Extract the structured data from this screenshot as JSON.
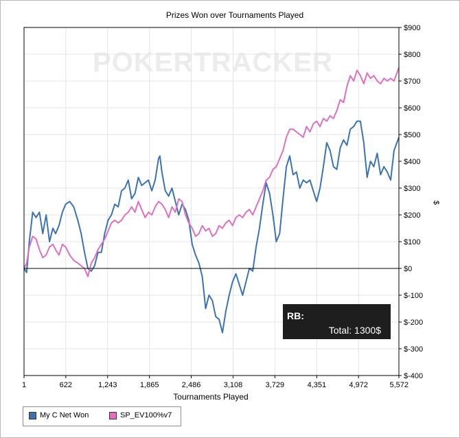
{
  "chart_data": {
    "type": "line",
    "title": "Prizes Won over Tournaments Played",
    "xlabel": "Tournaments Played",
    "ylabel": "$",
    "xlim": [
      1,
      5572
    ],
    "ylim": [
      -400,
      900
    ],
    "x_ticks": [
      1,
      622,
      1243,
      1865,
      2486,
      3108,
      3729,
      4351,
      4972,
      5572
    ],
    "x_tick_labels": [
      "1",
      "622",
      "1,243",
      "1,865",
      "2,486",
      "3,108",
      "3,729",
      "4,351",
      "4,972",
      "5,572"
    ],
    "y_ticks": [
      -400,
      -300,
      -200,
      -100,
      0,
      100,
      200,
      300,
      400,
      500,
      600,
      700,
      800,
      900
    ],
    "y_tick_labels": [
      "$-400",
      "$-300",
      "$-200",
      "$-100",
      "$0",
      "$100",
      "$200",
      "$300",
      "$400",
      "$500",
      "$600",
      "$700",
      "$800",
      "$900"
    ],
    "grid": true,
    "legend_position": "bottom-left",
    "series": [
      {
        "name": "My C Net Won",
        "color": "#3a73b5",
        "points": [
          [
            1,
            0
          ],
          [
            40,
            -15
          ],
          [
            80,
            100
          ],
          [
            130,
            210
          ],
          [
            180,
            190
          ],
          [
            230,
            210
          ],
          [
            280,
            130
          ],
          [
            330,
            200
          ],
          [
            380,
            100
          ],
          [
            430,
            150
          ],
          [
            470,
            130
          ],
          [
            520,
            160
          ],
          [
            570,
            210
          ],
          [
            620,
            240
          ],
          [
            680,
            250
          ],
          [
            740,
            230
          ],
          [
            800,
            180
          ],
          [
            850,
            130
          ],
          [
            900,
            60
          ],
          [
            950,
            0
          ],
          [
            1000,
            -10
          ],
          [
            1050,
            10
          ],
          [
            1100,
            60
          ],
          [
            1150,
            60
          ],
          [
            1200,
            130
          ],
          [
            1250,
            180
          ],
          [
            1300,
            200
          ],
          [
            1350,
            240
          ],
          [
            1400,
            230
          ],
          [
            1450,
            290
          ],
          [
            1500,
            300
          ],
          [
            1550,
            330
          ],
          [
            1600,
            260
          ],
          [
            1650,
            280
          ],
          [
            1700,
            340
          ],
          [
            1750,
            310
          ],
          [
            1800,
            320
          ],
          [
            1850,
            330
          ],
          [
            1900,
            290
          ],
          [
            1950,
            330
          ],
          [
            2000,
            410
          ],
          [
            2020,
            420
          ],
          [
            2050,
            360
          ],
          [
            2100,
            290
          ],
          [
            2150,
            270
          ],
          [
            2200,
            300
          ],
          [
            2250,
            250
          ],
          [
            2300,
            200
          ],
          [
            2350,
            240
          ],
          [
            2400,
            220
          ],
          [
            2450,
            180
          ],
          [
            2500,
            90
          ],
          [
            2550,
            50
          ],
          [
            2600,
            20
          ],
          [
            2650,
            -30
          ],
          [
            2700,
            -150
          ],
          [
            2750,
            -100
          ],
          [
            2800,
            -120
          ],
          [
            2850,
            -180
          ],
          [
            2900,
            -190
          ],
          [
            2950,
            -240
          ],
          [
            3000,
            -160
          ],
          [
            3050,
            -100
          ],
          [
            3100,
            -50
          ],
          [
            3150,
            -20
          ],
          [
            3200,
            -60
          ],
          [
            3250,
            -100
          ],
          [
            3300,
            -50
          ],
          [
            3350,
            0
          ],
          [
            3400,
            -10
          ],
          [
            3450,
            80
          ],
          [
            3500,
            150
          ],
          [
            3550,
            240
          ],
          [
            3600,
            320
          ],
          [
            3650,
            280
          ],
          [
            3700,
            200
          ],
          [
            3750,
            100
          ],
          [
            3800,
            130
          ],
          [
            3850,
            260
          ],
          [
            3900,
            380
          ],
          [
            3950,
            420
          ],
          [
            4000,
            350
          ],
          [
            4050,
            360
          ],
          [
            4100,
            300
          ],
          [
            4150,
            330
          ],
          [
            4200,
            320
          ],
          [
            4250,
            330
          ],
          [
            4300,
            290
          ],
          [
            4350,
            250
          ],
          [
            4400,
            300
          ],
          [
            4450,
            380
          ],
          [
            4500,
            470
          ],
          [
            4550,
            440
          ],
          [
            4600,
            380
          ],
          [
            4650,
            370
          ],
          [
            4700,
            450
          ],
          [
            4750,
            480
          ],
          [
            4800,
            460
          ],
          [
            4850,
            520
          ],
          [
            4900,
            530
          ],
          [
            4950,
            550
          ],
          [
            5000,
            550
          ],
          [
            5050,
            470
          ],
          [
            5100,
            340
          ],
          [
            5150,
            400
          ],
          [
            5200,
            380
          ],
          [
            5250,
            430
          ],
          [
            5300,
            350
          ],
          [
            5350,
            380
          ],
          [
            5400,
            360
          ],
          [
            5450,
            330
          ],
          [
            5500,
            440
          ],
          [
            5572,
            490
          ]
        ]
      },
      {
        "name": "SP_EV100%v7",
        "color": "#e06fbf",
        "points": [
          [
            1,
            0
          ],
          [
            40,
            20
          ],
          [
            80,
            80
          ],
          [
            130,
            120
          ],
          [
            180,
            110
          ],
          [
            230,
            70
          ],
          [
            280,
            40
          ],
          [
            330,
            50
          ],
          [
            380,
            80
          ],
          [
            430,
            90
          ],
          [
            470,
            70
          ],
          [
            520,
            50
          ],
          [
            570,
            90
          ],
          [
            620,
            80
          ],
          [
            680,
            50
          ],
          [
            740,
            30
          ],
          [
            800,
            20
          ],
          [
            850,
            10
          ],
          [
            900,
            0
          ],
          [
            950,
            -30
          ],
          [
            1000,
            20
          ],
          [
            1050,
            40
          ],
          [
            1100,
            70
          ],
          [
            1150,
            90
          ],
          [
            1200,
            110
          ],
          [
            1250,
            140
          ],
          [
            1300,
            170
          ],
          [
            1350,
            180
          ],
          [
            1400,
            170
          ],
          [
            1450,
            180
          ],
          [
            1500,
            200
          ],
          [
            1550,
            210
          ],
          [
            1600,
            230
          ],
          [
            1650,
            210
          ],
          [
            1700,
            250
          ],
          [
            1750,
            220
          ],
          [
            1800,
            190
          ],
          [
            1850,
            210
          ],
          [
            1900,
            200
          ],
          [
            1950,
            230
          ],
          [
            2000,
            250
          ],
          [
            2050,
            240
          ],
          [
            2100,
            220
          ],
          [
            2150,
            190
          ],
          [
            2200,
            230
          ],
          [
            2250,
            210
          ],
          [
            2300,
            260
          ],
          [
            2350,
            250
          ],
          [
            2400,
            200
          ],
          [
            2450,
            170
          ],
          [
            2500,
            150
          ],
          [
            2550,
            120
          ],
          [
            2600,
            130
          ],
          [
            2650,
            160
          ],
          [
            2700,
            140
          ],
          [
            2750,
            150
          ],
          [
            2800,
            120
          ],
          [
            2850,
            130
          ],
          [
            2900,
            160
          ],
          [
            2950,
            150
          ],
          [
            3000,
            170
          ],
          [
            3050,
            180
          ],
          [
            3100,
            160
          ],
          [
            3150,
            190
          ],
          [
            3200,
            200
          ],
          [
            3250,
            190
          ],
          [
            3300,
            210
          ],
          [
            3350,
            220
          ],
          [
            3400,
            200
          ],
          [
            3450,
            230
          ],
          [
            3500,
            260
          ],
          [
            3550,
            290
          ],
          [
            3600,
            330
          ],
          [
            3650,
            340
          ],
          [
            3700,
            370
          ],
          [
            3750,
            380
          ],
          [
            3800,
            410
          ],
          [
            3850,
            440
          ],
          [
            3900,
            490
          ],
          [
            3950,
            520
          ],
          [
            4000,
            520
          ],
          [
            4050,
            510
          ],
          [
            4100,
            500
          ],
          [
            4150,
            490
          ],
          [
            4200,
            530
          ],
          [
            4250,
            510
          ],
          [
            4300,
            540
          ],
          [
            4350,
            550
          ],
          [
            4400,
            530
          ],
          [
            4450,
            560
          ],
          [
            4500,
            550
          ],
          [
            4550,
            570
          ],
          [
            4600,
            560
          ],
          [
            4650,
            590
          ],
          [
            4700,
            630
          ],
          [
            4750,
            620
          ],
          [
            4800,
            680
          ],
          [
            4850,
            720
          ],
          [
            4900,
            700
          ],
          [
            4950,
            740
          ],
          [
            5000,
            720
          ],
          [
            5050,
            690
          ],
          [
            5100,
            730
          ],
          [
            5150,
            710
          ],
          [
            5200,
            720
          ],
          [
            5250,
            700
          ],
          [
            5300,
            690
          ],
          [
            5350,
            710
          ],
          [
            5400,
            700
          ],
          [
            5450,
            710
          ],
          [
            5500,
            700
          ],
          [
            5572,
            750
          ]
        ]
      }
    ]
  },
  "legend": {
    "items": [
      {
        "label": "My C Net Won",
        "color": "#3a73b5"
      },
      {
        "label": "SP_EV100%v7",
        "color": "#e06fbf"
      }
    ]
  },
  "watermark": "POKERTRACKER",
  "rakeback_box": {
    "title": "RB:",
    "total": "Total: 1300$"
  }
}
